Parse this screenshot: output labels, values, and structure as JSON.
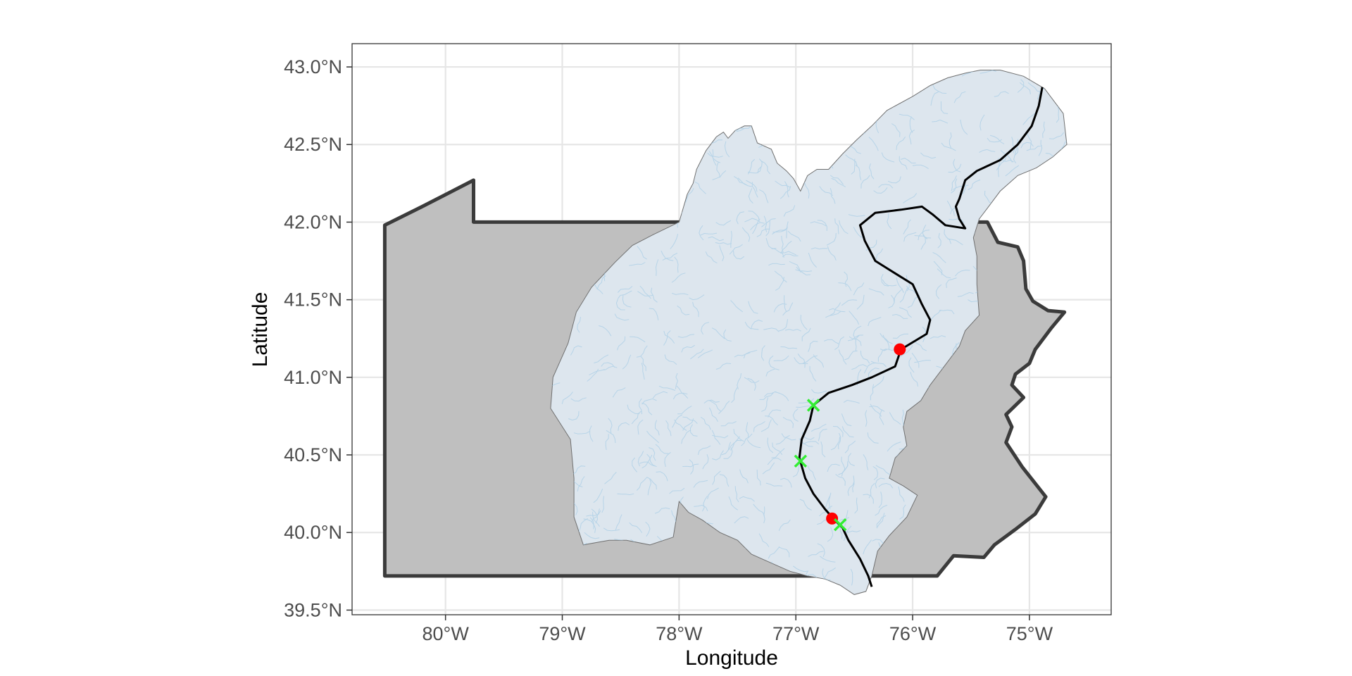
{
  "map": {
    "xlabel": "Longitude",
    "ylabel": "Latitude",
    "xlim": [
      -80.8,
      -74.3
    ],
    "ylim": [
      39.47,
      43.15
    ],
    "x_ticks": [
      {
        "value": -80,
        "label": "80°W"
      },
      {
        "value": -79,
        "label": "79°W"
      },
      {
        "value": -78,
        "label": "78°W"
      },
      {
        "value": -77,
        "label": "77°W"
      },
      {
        "value": -76,
        "label": "76°W"
      },
      {
        "value": -75,
        "label": "75°W"
      }
    ],
    "y_ticks": [
      {
        "value": 43.0,
        "label": "43.0°N"
      },
      {
        "value": 42.5,
        "label": "42.5°N"
      },
      {
        "value": 42.0,
        "label": "42.0°N"
      },
      {
        "value": 41.5,
        "label": "41.5°N"
      },
      {
        "value": 41.0,
        "label": "41.0°N"
      },
      {
        "value": 40.5,
        "label": "40.5°N"
      },
      {
        "value": 40.0,
        "label": "40.0°N"
      },
      {
        "value": 39.5,
        "label": "39.5°N"
      }
    ],
    "grid": true,
    "colors": {
      "state_fill": "#bfbfbf",
      "state_outline": "#3b3b3b",
      "watershed_fill": "#dde6ee",
      "river_network": "#aacde6",
      "main_river": "#000000",
      "red_sites": "#ff0000",
      "green_sites": "#33ee33",
      "grid": "#e6e6e6",
      "panel_border": "#333333"
    },
    "state_outline": [
      [
        -80.52,
        41.98
      ],
      [
        -80.2,
        42.1
      ],
      [
        -79.76,
        42.27
      ],
      [
        -79.76,
        42.0
      ],
      [
        -75.36,
        42.0
      ],
      [
        -75.27,
        41.87
      ],
      [
        -75.1,
        41.84
      ],
      [
        -75.05,
        41.75
      ],
      [
        -75.03,
        41.57
      ],
      [
        -74.97,
        41.49
      ],
      [
        -74.84,
        41.43
      ],
      [
        -74.7,
        41.42
      ],
      [
        -74.81,
        41.32
      ],
      [
        -74.95,
        41.18
      ],
      [
        -75.0,
        41.09
      ],
      [
        -75.12,
        41.02
      ],
      [
        -75.15,
        40.95
      ],
      [
        -75.05,
        40.87
      ],
      [
        -75.2,
        40.76
      ],
      [
        -75.15,
        40.68
      ],
      [
        -75.2,
        40.58
      ],
      [
        -75.06,
        40.42
      ],
      [
        -74.86,
        40.23
      ],
      [
        -74.95,
        40.12
      ],
      [
        -75.12,
        40.02
      ],
      [
        -75.3,
        39.92
      ],
      [
        -75.39,
        39.84
      ],
      [
        -75.65,
        39.85
      ],
      [
        -75.79,
        39.72
      ],
      [
        -80.52,
        39.72
      ]
    ],
    "watershed_outline": [
      [
        -77.77,
        42.46
      ],
      [
        -77.68,
        42.55
      ],
      [
        -77.62,
        42.58
      ],
      [
        -77.58,
        42.54
      ],
      [
        -77.52,
        42.59
      ],
      [
        -77.44,
        42.62
      ],
      [
        -77.38,
        42.62
      ],
      [
        -77.33,
        42.51
      ],
      [
        -77.21,
        42.47
      ],
      [
        -77.16,
        42.38
      ],
      [
        -77.08,
        42.33
      ],
      [
        -77.02,
        42.28
      ],
      [
        -76.96,
        42.2
      ],
      [
        -76.9,
        42.3
      ],
      [
        -76.82,
        42.34
      ],
      [
        -76.72,
        42.34
      ],
      [
        -76.6,
        42.44
      ],
      [
        -76.48,
        42.53
      ],
      [
        -76.35,
        42.62
      ],
      [
        -76.22,
        42.72
      ],
      [
        -76.0,
        42.81
      ],
      [
        -75.85,
        42.88
      ],
      [
        -75.7,
        42.93
      ],
      [
        -75.55,
        42.96
      ],
      [
        -75.42,
        42.98
      ],
      [
        -75.25,
        42.98
      ],
      [
        -75.05,
        42.94
      ],
      [
        -74.87,
        42.86
      ],
      [
        -74.71,
        42.7
      ],
      [
        -74.68,
        42.5
      ],
      [
        -74.8,
        42.42
      ],
      [
        -74.94,
        42.35
      ],
      [
        -75.1,
        42.3
      ],
      [
        -75.25,
        42.2
      ],
      [
        -75.35,
        42.1
      ],
      [
        -75.43,
        42.02
      ],
      [
        -75.48,
        41.9
      ],
      [
        -75.45,
        41.78
      ],
      [
        -75.45,
        41.6
      ],
      [
        -75.43,
        41.4
      ],
      [
        -75.55,
        41.3
      ],
      [
        -75.6,
        41.2
      ],
      [
        -75.7,
        41.1
      ],
      [
        -75.85,
        40.95
      ],
      [
        -75.93,
        40.85
      ],
      [
        -76.05,
        40.78
      ],
      [
        -76.08,
        40.68
      ],
      [
        -76.05,
        40.56
      ],
      [
        -76.15,
        40.48
      ],
      [
        -76.2,
        40.35
      ],
      [
        -76.08,
        40.3
      ],
      [
        -75.96,
        40.24
      ],
      [
        -76.05,
        40.1
      ],
      [
        -76.2,
        39.98
      ],
      [
        -76.3,
        39.88
      ],
      [
        -76.35,
        39.72
      ],
      [
        -76.4,
        39.62
      ],
      [
        -76.5,
        39.6
      ],
      [
        -76.62,
        39.66
      ],
      [
        -76.75,
        39.7
      ],
      [
        -76.9,
        39.72
      ],
      [
        -77.05,
        39.75
      ],
      [
        -77.2,
        39.8
      ],
      [
        -77.38,
        39.86
      ],
      [
        -77.5,
        39.95
      ],
      [
        -77.65,
        40.0
      ],
      [
        -77.8,
        40.08
      ],
      [
        -77.92,
        40.13
      ],
      [
        -78.0,
        40.2
      ],
      [
        -78.05,
        39.97
      ],
      [
        -78.25,
        39.92
      ],
      [
        -78.45,
        39.95
      ],
      [
        -78.6,
        39.95
      ],
      [
        -78.82,
        39.92
      ],
      [
        -78.9,
        40.1
      ],
      [
        -78.9,
        40.35
      ],
      [
        -78.93,
        40.6
      ],
      [
        -79.1,
        40.8
      ],
      [
        -79.08,
        41.0
      ],
      [
        -78.95,
        41.22
      ],
      [
        -78.88,
        41.42
      ],
      [
        -78.75,
        41.58
      ],
      [
        -78.55,
        41.74
      ],
      [
        -78.4,
        41.85
      ],
      [
        -78.22,
        41.92
      ],
      [
        -78.0,
        42.0
      ],
      [
        -77.93,
        42.18
      ],
      [
        -77.88,
        42.25
      ],
      [
        -77.85,
        42.34
      ]
    ],
    "main_river": [
      [
        -74.89,
        42.87
      ],
      [
        -74.92,
        42.75
      ],
      [
        -74.98,
        42.62
      ],
      [
        -75.1,
        42.5
      ],
      [
        -75.25,
        42.4
      ],
      [
        -75.45,
        42.33
      ],
      [
        -75.55,
        42.27
      ],
      [
        -75.6,
        42.15
      ],
      [
        -75.63,
        42.1
      ],
      [
        -75.6,
        42.02
      ],
      [
        -75.55,
        41.96
      ],
      [
        -75.72,
        41.98
      ],
      [
        -75.83,
        42.05
      ],
      [
        -75.92,
        42.1
      ],
      [
        -76.1,
        42.08
      ],
      [
        -76.32,
        42.06
      ],
      [
        -76.45,
        41.98
      ],
      [
        -76.41,
        41.88
      ],
      [
        -76.32,
        41.75
      ],
      [
        -76.15,
        41.67
      ],
      [
        -76.0,
        41.6
      ],
      [
        -75.92,
        41.47
      ],
      [
        -75.85,
        41.37
      ],
      [
        -75.88,
        41.28
      ],
      [
        -76.1,
        41.18
      ],
      [
        -76.15,
        41.07
      ],
      [
        -76.35,
        41.0
      ],
      [
        -76.52,
        40.95
      ],
      [
        -76.72,
        40.9
      ],
      [
        -76.85,
        40.82
      ],
      [
        -76.88,
        40.72
      ],
      [
        -76.95,
        40.6
      ],
      [
        -76.97,
        40.48
      ],
      [
        -76.92,
        40.35
      ],
      [
        -76.85,
        40.25
      ],
      [
        -76.75,
        40.15
      ],
      [
        -76.68,
        40.09
      ],
      [
        -76.6,
        40.03
      ],
      [
        -76.55,
        39.95
      ],
      [
        -76.45,
        39.83
      ],
      [
        -76.38,
        39.72
      ],
      [
        -76.35,
        39.65
      ]
    ],
    "red_sites": [
      {
        "lon": -76.11,
        "lat": 41.18
      },
      {
        "lon": -76.69,
        "lat": 40.09
      }
    ],
    "green_sites": [
      {
        "lon": -76.85,
        "lat": 40.82
      },
      {
        "lon": -76.96,
        "lat": 40.46
      },
      {
        "lon": -76.62,
        "lat": 40.05
      }
    ]
  }
}
